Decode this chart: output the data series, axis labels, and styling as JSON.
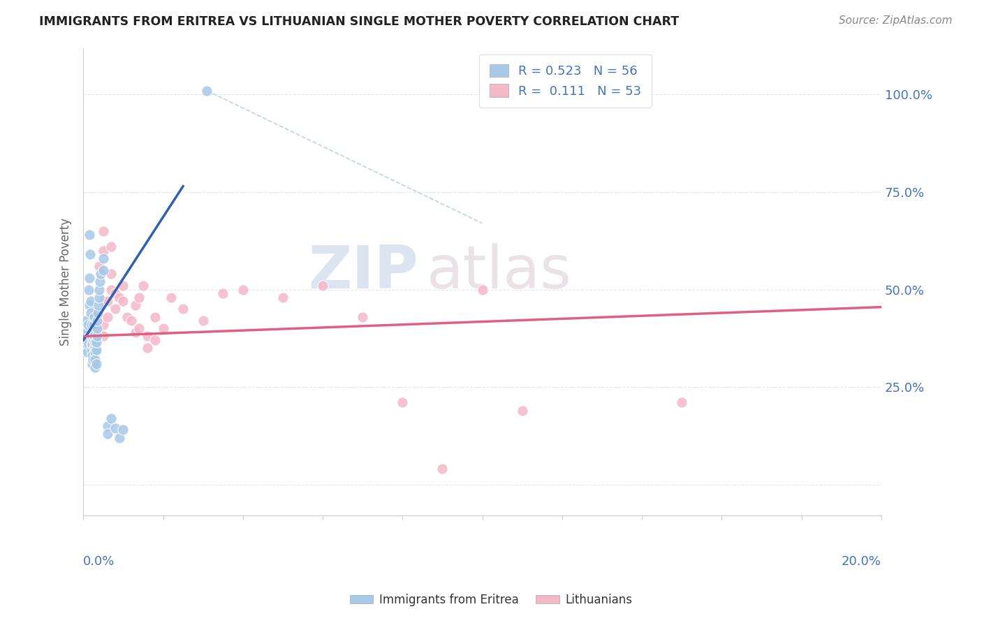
{
  "title": "IMMIGRANTS FROM ERITREA VS LITHUANIAN SINGLE MOTHER POVERTY CORRELATION CHART",
  "source": "Source: ZipAtlas.com",
  "ylabel": "Single Mother Poverty",
  "legend_r1": "R = 0.523",
  "legend_n1": "N = 56",
  "legend_r2": "R =  0.111",
  "legend_n2": "N = 53",
  "legend_label1": "Immigrants from Eritrea",
  "legend_label2": "Lithuanians",
  "watermark_zip": "ZIP",
  "watermark_atlas": "atlas",
  "blue_color": "#a8c8e8",
  "pink_color": "#f4b8c8",
  "blue_line_color": "#3060b0",
  "pink_line_color": "#e06080",
  "ref_line_color": "#b0c8e0",
  "background_color": "#ffffff",
  "grid_color": "#e0e8f0",
  "title_color": "#222222",
  "source_color": "#888888",
  "tick_label_color": "#4472c4",
  "ylabel_color": "#666666",
  "xlim": [
    0.0,
    0.2
  ],
  "ylim": [
    -0.08,
    1.12
  ],
  "blue_pts": [
    [
      0.0005,
      0.38
    ],
    [
      0.0006,
      0.42
    ],
    [
      0.0007,
      0.35
    ],
    [
      0.0008,
      0.39
    ],
    [
      0.0009,
      0.36
    ],
    [
      0.001,
      0.375
    ],
    [
      0.001,
      0.34
    ],
    [
      0.0012,
      0.41
    ],
    [
      0.0013,
      0.36
    ],
    [
      0.0014,
      0.5
    ],
    [
      0.0015,
      0.53
    ],
    [
      0.0015,
      0.46
    ],
    [
      0.0016,
      0.64
    ],
    [
      0.0017,
      0.59
    ],
    [
      0.0018,
      0.44
    ],
    [
      0.0019,
      0.47
    ],
    [
      0.002,
      0.41
    ],
    [
      0.002,
      0.38
    ],
    [
      0.002,
      0.36
    ],
    [
      0.0021,
      0.345
    ],
    [
      0.0022,
      0.33
    ],
    [
      0.0022,
      0.31
    ],
    [
      0.0023,
      0.36
    ],
    [
      0.0024,
      0.32
    ],
    [
      0.0025,
      0.37
    ],
    [
      0.0025,
      0.39
    ],
    [
      0.0026,
      0.41
    ],
    [
      0.0027,
      0.35
    ],
    [
      0.0028,
      0.43
    ],
    [
      0.0028,
      0.38
    ],
    [
      0.0029,
      0.355
    ],
    [
      0.003,
      0.365
    ],
    [
      0.003,
      0.34
    ],
    [
      0.003,
      0.32
    ],
    [
      0.003,
      0.3
    ],
    [
      0.0032,
      0.31
    ],
    [
      0.0033,
      0.345
    ],
    [
      0.0033,
      0.365
    ],
    [
      0.0034,
      0.38
    ],
    [
      0.0035,
      0.4
    ],
    [
      0.0035,
      0.42
    ],
    [
      0.0036,
      0.44
    ],
    [
      0.0038,
      0.46
    ],
    [
      0.004,
      0.48
    ],
    [
      0.004,
      0.5
    ],
    [
      0.0042,
      0.52
    ],
    [
      0.0044,
      0.54
    ],
    [
      0.005,
      0.58
    ],
    [
      0.005,
      0.55
    ],
    [
      0.006,
      0.15
    ],
    [
      0.006,
      0.13
    ],
    [
      0.007,
      0.17
    ],
    [
      0.008,
      0.145
    ],
    [
      0.009,
      0.12
    ],
    [
      0.01,
      0.14
    ],
    [
      0.031,
      1.01
    ]
  ],
  "pink_pts": [
    [
      0.0005,
      0.38
    ],
    [
      0.001,
      0.36
    ],
    [
      0.0015,
      0.37
    ],
    [
      0.002,
      0.39
    ],
    [
      0.002,
      0.34
    ],
    [
      0.0025,
      0.42
    ],
    [
      0.003,
      0.41
    ],
    [
      0.003,
      0.38
    ],
    [
      0.003,
      0.44
    ],
    [
      0.003,
      0.35
    ],
    [
      0.004,
      0.56
    ],
    [
      0.004,
      0.43
    ],
    [
      0.004,
      0.39
    ],
    [
      0.005,
      0.65
    ],
    [
      0.005,
      0.6
    ],
    [
      0.005,
      0.47
    ],
    [
      0.005,
      0.41
    ],
    [
      0.005,
      0.38
    ],
    [
      0.006,
      0.47
    ],
    [
      0.006,
      0.43
    ],
    [
      0.007,
      0.54
    ],
    [
      0.007,
      0.61
    ],
    [
      0.007,
      0.5
    ],
    [
      0.008,
      0.49
    ],
    [
      0.008,
      0.45
    ],
    [
      0.009,
      0.48
    ],
    [
      0.01,
      0.51
    ],
    [
      0.01,
      0.47
    ],
    [
      0.011,
      0.43
    ],
    [
      0.012,
      0.42
    ],
    [
      0.013,
      0.46
    ],
    [
      0.013,
      0.39
    ],
    [
      0.014,
      0.48
    ],
    [
      0.014,
      0.4
    ],
    [
      0.015,
      0.51
    ],
    [
      0.016,
      0.38
    ],
    [
      0.016,
      0.35
    ],
    [
      0.018,
      0.43
    ],
    [
      0.018,
      0.37
    ],
    [
      0.02,
      0.4
    ],
    [
      0.022,
      0.48
    ],
    [
      0.025,
      0.45
    ],
    [
      0.03,
      0.42
    ],
    [
      0.035,
      0.49
    ],
    [
      0.04,
      0.5
    ],
    [
      0.05,
      0.48
    ],
    [
      0.06,
      0.51
    ],
    [
      0.07,
      0.43
    ],
    [
      0.08,
      0.21
    ],
    [
      0.09,
      0.04
    ],
    [
      0.1,
      0.5
    ],
    [
      0.11,
      0.19
    ],
    [
      0.15,
      0.21
    ]
  ],
  "blue_line_x": [
    0.0,
    0.025
  ],
  "blue_line_y": [
    0.37,
    0.765
  ],
  "pink_line_x": [
    0.0,
    0.2
  ],
  "pink_line_y": [
    0.38,
    0.455
  ],
  "ref_line_x": [
    0.031,
    0.1
  ],
  "ref_line_y": [
    1.01,
    0.67
  ]
}
